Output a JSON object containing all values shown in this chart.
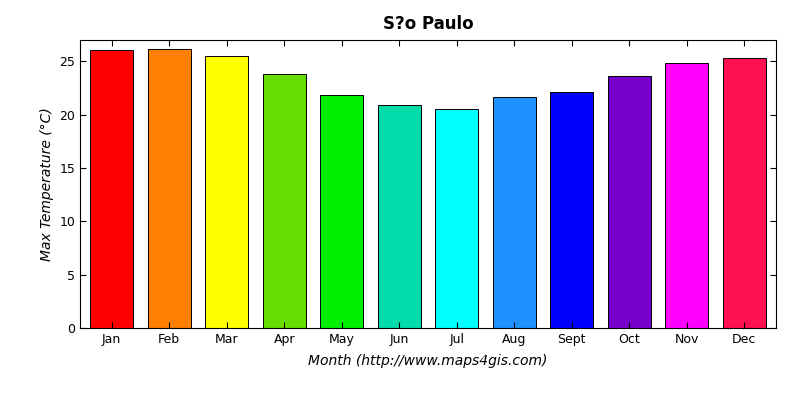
{
  "months": [
    "Jan",
    "Feb",
    "Mar",
    "Apr",
    "May",
    "Jun",
    "Jul",
    "Aug",
    "Sept",
    "Oct",
    "Nov",
    "Dec"
  ],
  "values": [
    26.1,
    26.2,
    25.5,
    23.8,
    21.8,
    20.9,
    20.5,
    21.7,
    22.1,
    23.6,
    24.8,
    25.3
  ],
  "colors": [
    "#ff0000",
    "#ff8000",
    "#ffff00",
    "#66dd00",
    "#00ee00",
    "#00ddaa",
    "#00ffff",
    "#1e90ff",
    "#0000ff",
    "#7700cc",
    "#ff00ff",
    "#ff1050"
  ],
  "title": "S?o Paulo",
  "xlabel": "Month (http://www.maps4gis.com)",
  "ylabel": "Max Temperature (°C)",
  "ylim": [
    0,
    27
  ],
  "yticks": [
    0,
    5,
    10,
    15,
    20,
    25
  ],
  "background_color": "#ffffff",
  "title_fontsize": 12,
  "axis_label_fontsize": 10,
  "tick_fontsize": 9
}
